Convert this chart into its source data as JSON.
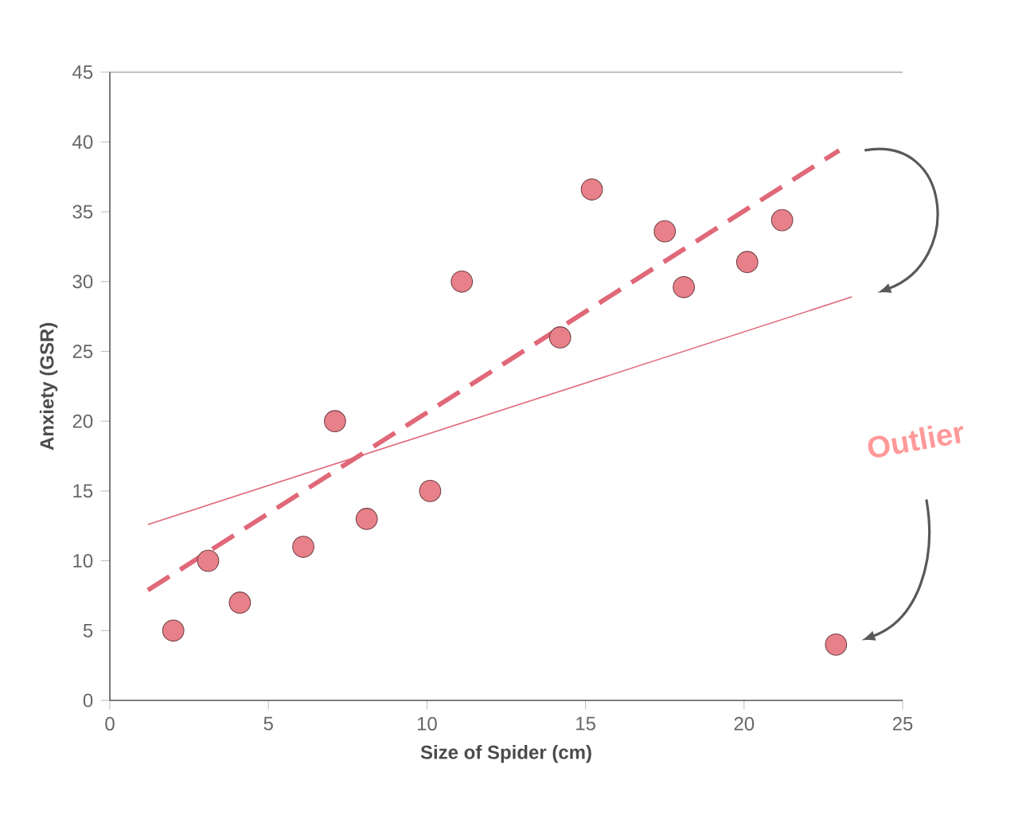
{
  "chart_data": {
    "type": "scatter",
    "xlabel": "Size of Spider (cm)",
    "ylabel": "Anxiety (GSR)",
    "xlim": [
      0,
      25
    ],
    "ylim": [
      0,
      45
    ],
    "xticks": [
      0,
      5,
      10,
      15,
      20,
      25
    ],
    "yticks": [
      0,
      5,
      10,
      15,
      20,
      25,
      30,
      35,
      40,
      45
    ],
    "series": [
      {
        "color": "#e8808a",
        "marker": "circle",
        "x": [
          2.0,
          3.1,
          4.1,
          6.1,
          7.1,
          8.1,
          10.1,
          11.1,
          14.2,
          15.2,
          17.5,
          18.1,
          20.1,
          21.2,
          22.9
        ],
        "values": [
          5,
          10,
          7,
          11,
          20,
          13,
          15,
          30,
          26,
          36.6,
          33.6,
          29.6,
          31.4,
          34.4,
          4
        ]
      },
      {
        "type": "line",
        "color": "#e06878",
        "line_style": "dashed",
        "marker": "none",
        "x": [
          1.2,
          23.0
        ],
        "values": [
          7.9,
          39.4
        ]
      },
      {
        "type": "line",
        "color": "#e06878",
        "line_style": "solid",
        "marker": "none",
        "x": [
          1.2,
          23.4
        ],
        "values": [
          12.6,
          28.9
        ]
      }
    ],
    "annotations": [
      "Outlier"
    ]
  }
}
